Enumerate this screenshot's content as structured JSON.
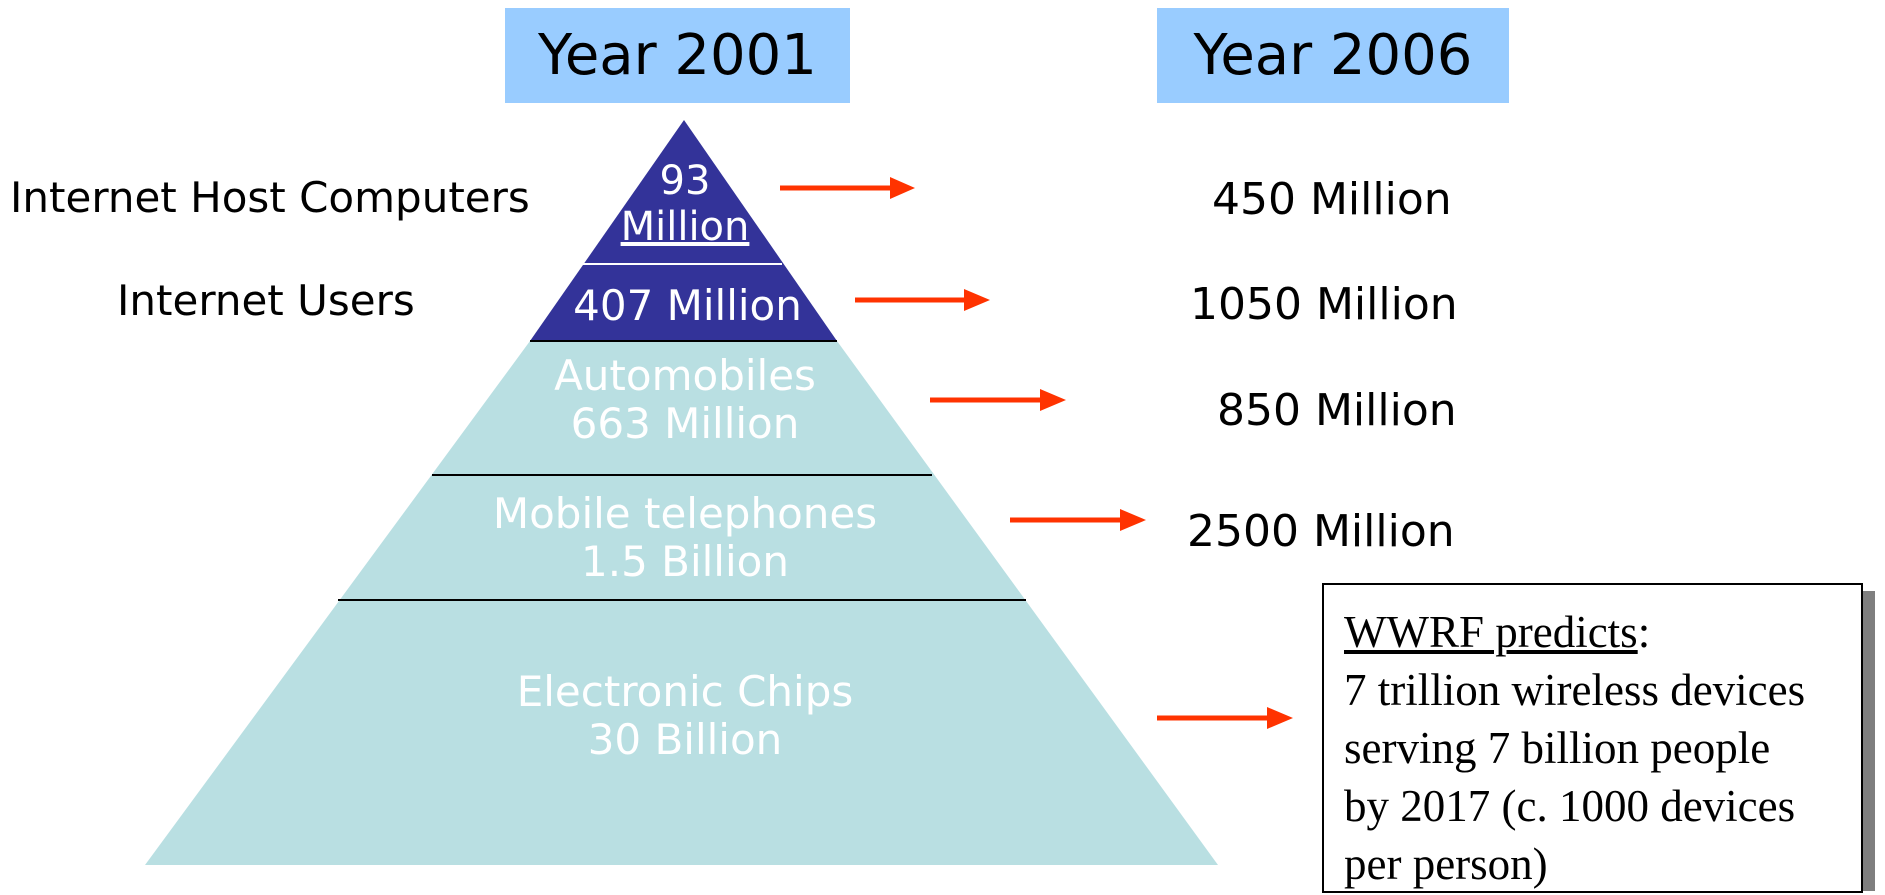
{
  "header": {
    "year_left": "Year 2001",
    "year_right": "Year 2006"
  },
  "left_labels": {
    "hosts": "Internet Host Computers",
    "users": "Internet Users"
  },
  "pyramid": {
    "tiers": [
      {
        "line1": "93",
        "line2": "Million"
      },
      {
        "line1": "407 Million"
      },
      {
        "line1": "Automobiles",
        "line2": "663 Million"
      },
      {
        "line1": "Mobile telephones",
        "line2": "1.5 Billion"
      },
      {
        "line1": "Electronic Chips",
        "line2": "30 Billion"
      }
    ]
  },
  "values_2006": [
    "450 Million",
    "1050 Million",
    "850 Million",
    "2500 Million"
  ],
  "wwrf": {
    "heading": "WWRF predicts",
    "heading_suffix": ":",
    "lines": [
      "7 trillion wireless devices",
      "serving 7 billion people",
      "by 2017 (c. 1000 devices",
      "per person)"
    ]
  },
  "colors": {
    "year_box": "#99ccff",
    "pyramid_top": "#333399",
    "pyramid_base": "#b9dfe2",
    "arrow": "#ff3300"
  }
}
